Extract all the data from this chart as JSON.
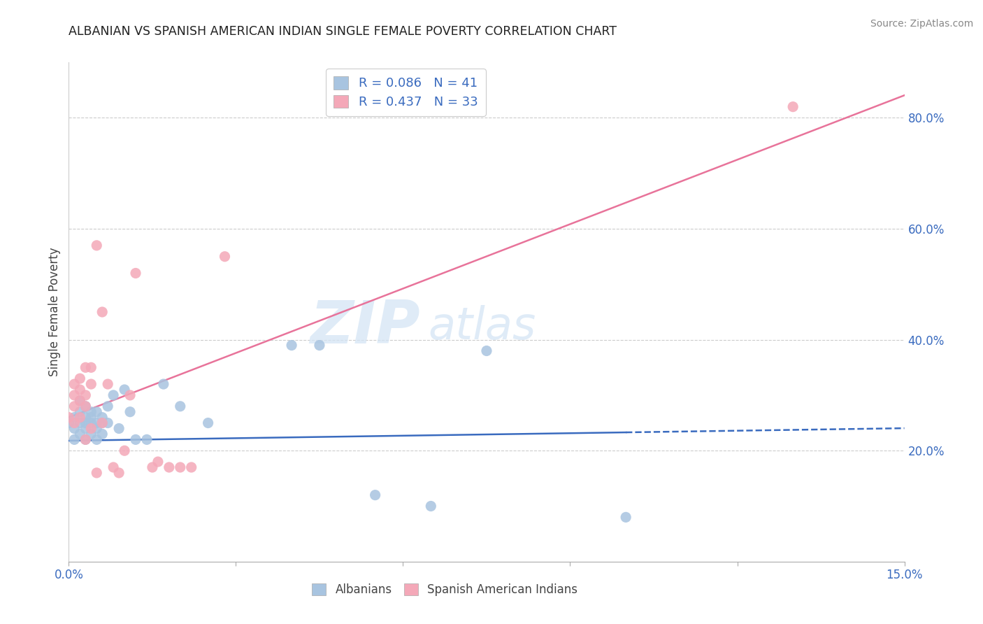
{
  "title": "ALBANIAN VS SPANISH AMERICAN INDIAN SINGLE FEMALE POVERTY CORRELATION CHART",
  "source": "Source: ZipAtlas.com",
  "ylabel": "Single Female Poverty",
  "xlim": [
    0.0,
    0.15
  ],
  "ylim": [
    0.0,
    0.9
  ],
  "albanian_R": 0.086,
  "albanian_N": 41,
  "spanish_ai_R": 0.437,
  "spanish_ai_N": 33,
  "albanian_color": "#a8c4e0",
  "spanish_ai_color": "#f4a8b8",
  "albanian_line_color": "#3a6bbf",
  "spanish_ai_line_color": "#e8739a",
  "albanian_x": [
    0.0,
    0.001,
    0.001,
    0.001,
    0.002,
    0.002,
    0.002,
    0.002,
    0.003,
    0.003,
    0.003,
    0.003,
    0.003,
    0.004,
    0.004,
    0.004,
    0.004,
    0.005,
    0.005,
    0.005,
    0.005,
    0.006,
    0.006,
    0.006,
    0.007,
    0.007,
    0.008,
    0.009,
    0.01,
    0.011,
    0.012,
    0.014,
    0.017,
    0.02,
    0.025,
    0.04,
    0.045,
    0.055,
    0.065,
    0.075,
    0.1
  ],
  "albanian_y": [
    0.25,
    0.22,
    0.24,
    0.26,
    0.23,
    0.25,
    0.27,
    0.29,
    0.22,
    0.24,
    0.25,
    0.26,
    0.28,
    0.23,
    0.25,
    0.26,
    0.27,
    0.22,
    0.24,
    0.25,
    0.27,
    0.23,
    0.25,
    0.26,
    0.25,
    0.28,
    0.3,
    0.24,
    0.31,
    0.27,
    0.22,
    0.22,
    0.32,
    0.28,
    0.25,
    0.39,
    0.39,
    0.12,
    0.1,
    0.38,
    0.08
  ],
  "spanish_ai_x": [
    0.0,
    0.001,
    0.001,
    0.001,
    0.001,
    0.002,
    0.002,
    0.002,
    0.002,
    0.003,
    0.003,
    0.003,
    0.003,
    0.004,
    0.004,
    0.004,
    0.005,
    0.005,
    0.006,
    0.006,
    0.007,
    0.008,
    0.009,
    0.01,
    0.011,
    0.012,
    0.015,
    0.016,
    0.018,
    0.02,
    0.022,
    0.028,
    0.13
  ],
  "spanish_ai_y": [
    0.26,
    0.25,
    0.28,
    0.3,
    0.32,
    0.26,
    0.29,
    0.31,
    0.33,
    0.22,
    0.28,
    0.3,
    0.35,
    0.24,
    0.32,
    0.35,
    0.57,
    0.16,
    0.45,
    0.25,
    0.32,
    0.17,
    0.16,
    0.2,
    0.3,
    0.52,
    0.17,
    0.18,
    0.17,
    0.17,
    0.17,
    0.55,
    0.82
  ],
  "watermark_line1": "ZIP",
  "watermark_line2": "atlas",
  "legend_label_color": "#3a6bbf",
  "background_color": "#ffffff",
  "grid_color": "#cccccc",
  "albanian_legend_label": "R = 0.086   N = 41",
  "spanish_ai_legend_label": "R = 0.437   N = 33",
  "bottom_legend_albanian": "Albanians",
  "bottom_legend_spanish": "Spanish American Indians"
}
